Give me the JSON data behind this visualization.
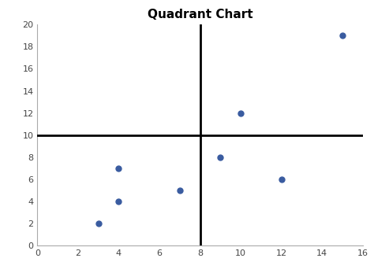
{
  "title": "Quadrant Chart",
  "points_x": [
    3,
    4,
    4,
    7,
    9,
    10,
    12,
    15
  ],
  "points_y": [
    2,
    7,
    4,
    5,
    8,
    12,
    6,
    19
  ],
  "xlim": [
    0,
    16
  ],
  "ylim": [
    0,
    20
  ],
  "xticks": [
    0,
    2,
    4,
    6,
    8,
    10,
    12,
    14,
    16
  ],
  "yticks": [
    0,
    2,
    4,
    6,
    8,
    10,
    12,
    14,
    16,
    18,
    20
  ],
  "quadrant_x": 8,
  "quadrant_y": 10,
  "dot_color": "#3A5CA0",
  "line_color": "black",
  "line_width": 2.0,
  "marker_size": 25,
  "title_fontsize": 11,
  "title_fontweight": "bold",
  "bg_color": "#ffffff",
  "tick_fontsize": 8,
  "spine_color": "#aaaaaa"
}
